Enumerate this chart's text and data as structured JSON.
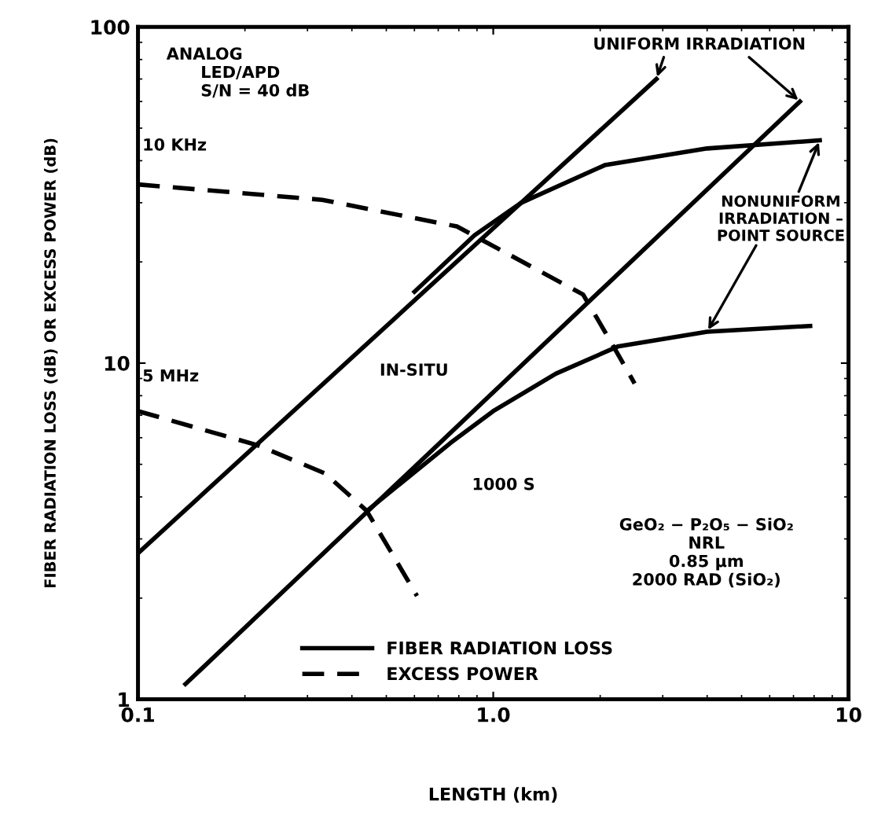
{
  "chart_data": {
    "type": "line",
    "xlabel": "LENGTH (km)",
    "ylabel": "FIBER RADIATION LOSS (dB) OR EXCESS POWER (dB)",
    "log": "xy",
    "xlim": [
      0.1,
      10
    ],
    "ylim": [
      1,
      100
    ],
    "xticks": [
      {
        "value": 0.1,
        "label": "0.1"
      },
      {
        "value": 1,
        "label": "1.0"
      },
      {
        "value": 10,
        "label": "10"
      }
    ],
    "yticks": [
      1,
      10,
      100
    ],
    "grid": false,
    "legend": "bottom",
    "marker": "none",
    "series": [
      {
        "name": "FIBER RADIATION LOSS",
        "color": "#000000",
        "line_style": "solid",
        "x": [
          0.1,
          2.88
        ],
        "values": [
          2.72,
          70
        ]
      },
      {
        "color": "#000000",
        "line_style": "solid",
        "x": [
          0.136,
          7.3
        ],
        "values": [
          1.11,
          60
        ]
      },
      {
        "color": "#000000",
        "line_style": "solid",
        "x": [
          0.6,
          0.886,
          1.2,
          2.06,
          4,
          8.3
        ],
        "values": [
          16.3,
          24,
          30,
          38.8,
          43.5,
          46
        ]
      },
      {
        "color": "#000000",
        "line_style": "solid",
        "x": [
          0.45,
          0.76,
          1.0,
          1.5,
          2.24,
          4,
          7.8
        ],
        "values": [
          3.7,
          5.8,
          7.2,
          9.3,
          11.2,
          12.4,
          12.9
        ]
      },
      {
        "name": "EXCESS POWER",
        "color": "#000000",
        "line_style": "dashed",
        "x": [
          0.1,
          0.33,
          0.79,
          1.79,
          2.15,
          2.5
        ],
        "values": [
          34,
          30.6,
          25.5,
          16,
          11.5,
          8.7
        ]
      },
      {
        "color": "#000000",
        "line_style": "dashed",
        "x": [
          0.1,
          0.217,
          0.336,
          0.44,
          0.61
        ],
        "values": [
          7.2,
          5.7,
          4.7,
          3.64,
          2.03
        ]
      }
    ],
    "annotations": [
      "ANALOG\n      LED/APD\n      S/N = 40 dB",
      {
        "text": "10 KHz",
        "x": 0.1,
        "y": 34
      },
      {
        "text": "5 MHz",
        "x": 0.1,
        "y": 7.2
      },
      "IN-SITU",
      "1000 S",
      {
        "text": "UNIFORM IRRADIATION",
        "x": 2.88,
        "y": 70
      },
      {
        "text": "NONUNIFORM\nIRRADIATION –\nPOINT SOURCE",
        "x": 4,
        "y": 12.4
      },
      "GeO₂ − P₂O₅ − SiO₂\nNRL\n0.85 μm\n2000 RAD (SiO₂)"
    ]
  }
}
